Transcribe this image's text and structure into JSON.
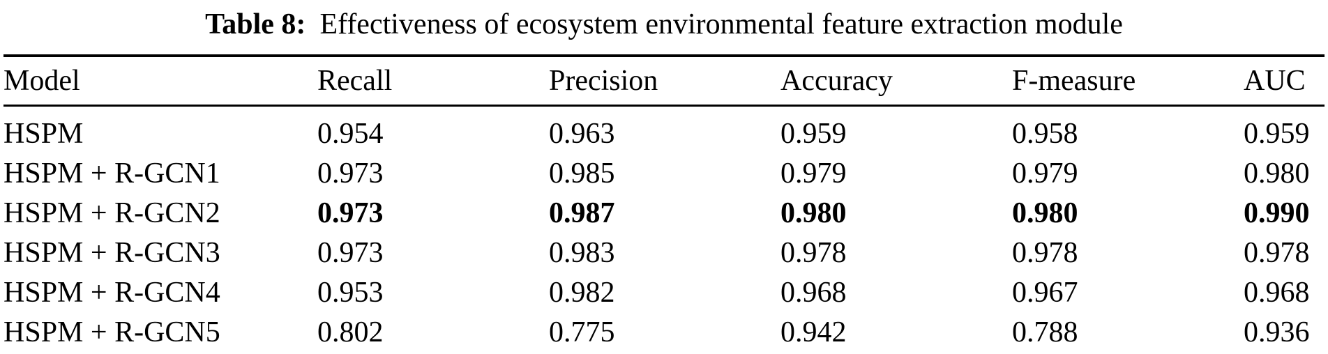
{
  "colors": {
    "text": "#000000",
    "background": "#ffffff",
    "rule": "#000000"
  },
  "caption": {
    "label": "Table 8:",
    "text": "Effectiveness of ecosystem environmental feature extraction module"
  },
  "table": {
    "columns": [
      "Model",
      "Recall",
      "Precision",
      "Accuracy",
      "F-measure",
      "AUC"
    ],
    "rows": [
      {
        "model": "HSPM",
        "values": [
          "0.954",
          "0.963",
          "0.959",
          "0.958",
          "0.959"
        ],
        "bold": false
      },
      {
        "model": "HSPM + R-GCN1",
        "values": [
          "0.973",
          "0.985",
          "0.979",
          "0.979",
          "0.980"
        ],
        "bold": false
      },
      {
        "model": "HSPM + R-GCN2",
        "values": [
          "0.973",
          "0.987",
          "0.980",
          "0.980",
          "0.990"
        ],
        "bold": true
      },
      {
        "model": "HSPM + R-GCN3",
        "values": [
          "0.973",
          "0.983",
          "0.978",
          "0.978",
          "0.978"
        ],
        "bold": false
      },
      {
        "model": "HSPM + R-GCN4",
        "values": [
          "0.953",
          "0.982",
          "0.968",
          "0.967",
          "0.968"
        ],
        "bold": false
      },
      {
        "model": "HSPM + R-GCN5",
        "values": [
          "0.802",
          "0.775",
          "0.942",
          "0.788",
          "0.936"
        ],
        "bold": false
      }
    ]
  },
  "chart_data": {
    "type": "table",
    "title": "Table 8: Effectiveness of ecosystem environmental feature extraction module",
    "columns": [
      "Model",
      "Recall",
      "Precision",
      "Accuracy",
      "F-measure",
      "AUC"
    ],
    "rows": [
      [
        "HSPM",
        0.954,
        0.963,
        0.959,
        0.958,
        0.959
      ],
      [
        "HSPM + R-GCN1",
        0.973,
        0.985,
        0.979,
        0.979,
        0.98
      ],
      [
        "HSPM + R-GCN2",
        0.973,
        0.987,
        0.98,
        0.98,
        0.99
      ],
      [
        "HSPM + R-GCN3",
        0.973,
        0.983,
        0.978,
        0.978,
        0.978
      ],
      [
        "HSPM + R-GCN4",
        0.953,
        0.982,
        0.968,
        0.967,
        0.968
      ],
      [
        "HSPM + R-GCN5",
        0.802,
        0.775,
        0.942,
        0.788,
        0.936
      ]
    ],
    "highlighted_row": "HSPM + R-GCN2"
  }
}
